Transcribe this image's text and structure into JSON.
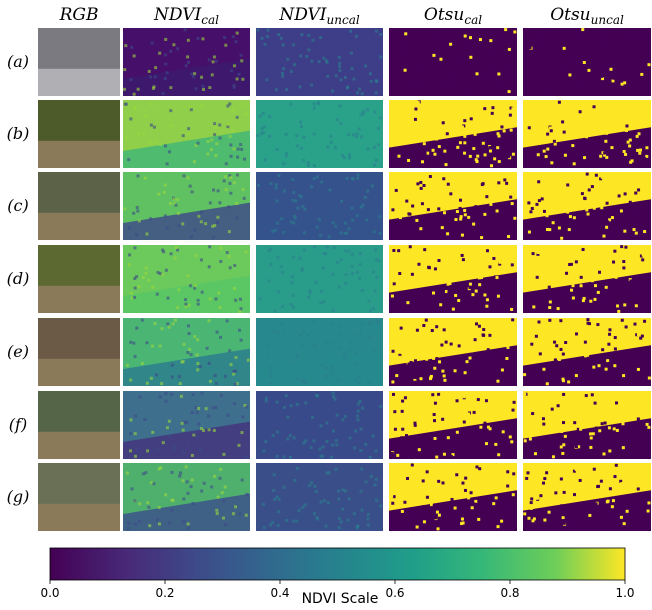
{
  "columns": [
    {
      "text": "RGB"
    },
    {
      "text": "NDVI",
      "sub": "cal"
    },
    {
      "text": "NDVI",
      "sub": "uncal"
    },
    {
      "text": "Otsu",
      "sub": "cal"
    },
    {
      "text": "Otsu",
      "sub": "uncal"
    }
  ],
  "rows": [
    "(a)",
    "(b)",
    "(c)",
    "(d)",
    "(e)",
    "(f)",
    "(g)"
  ],
  "colorbar": {
    "label": "NDVI Scale",
    "lim": [
      0,
      1
    ],
    "ticks": [
      {
        "value": 0,
        "label": "0.0"
      },
      0.2,
      0.4,
      0.6,
      0.8,
      {
        "value": 1,
        "label": "1.0"
      }
    ]
  }
}
